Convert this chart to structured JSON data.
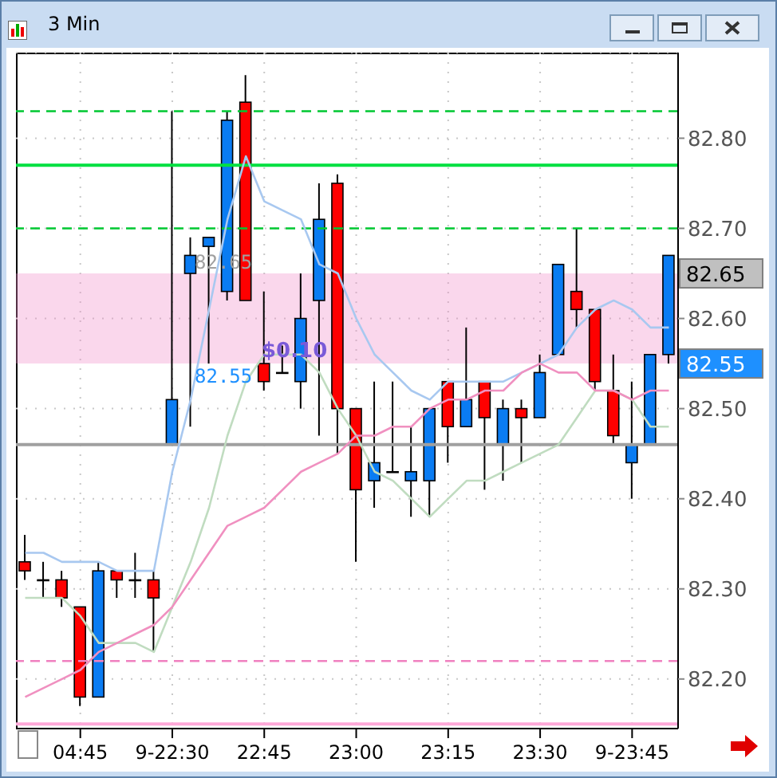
{
  "chart_data": {
    "type": "candlestick",
    "title": "3 Min",
    "categories": [
      null,
      null,
      null,
      "04:45",
      null,
      null,
      null,
      null,
      "9-22:30",
      null,
      null,
      null,
      null,
      "22:45",
      null,
      null,
      null,
      null,
      "23:00",
      null,
      null,
      null,
      null,
      "23:15",
      null,
      null,
      null,
      null,
      "23:30",
      null,
      null,
      null,
      null,
      "9-23:45",
      null,
      null
    ],
    "ohlc": [
      [
        82.33,
        82.36,
        82.31,
        82.32
      ],
      [
        82.31,
        82.33,
        82.29,
        82.31
      ],
      [
        82.31,
        82.32,
        82.28,
        82.29
      ],
      [
        82.28,
        82.28,
        82.17,
        82.18
      ],
      [
        82.18,
        82.33,
        82.18,
        82.32
      ],
      [
        82.32,
        82.32,
        82.29,
        82.31
      ],
      [
        82.31,
        82.34,
        82.29,
        82.31
      ],
      [
        82.31,
        82.32,
        82.23,
        82.29
      ],
      [
        82.46,
        82.83,
        82.46,
        82.51
      ],
      [
        82.65,
        82.69,
        82.48,
        82.67
      ],
      [
        82.68,
        82.69,
        82.55,
        82.69
      ],
      [
        82.63,
        82.83,
        82.62,
        82.82
      ],
      [
        82.84,
        82.87,
        82.62,
        82.62
      ],
      [
        82.55,
        82.63,
        82.52,
        82.53
      ],
      [
        82.54,
        82.57,
        82.54,
        82.54
      ],
      [
        82.53,
        82.65,
        82.5,
        82.6
      ],
      [
        82.62,
        82.75,
        82.47,
        82.71
      ],
      [
        82.75,
        82.76,
        82.45,
        82.5
      ],
      [
        82.5,
        82.5,
        82.33,
        82.41
      ],
      [
        82.42,
        82.53,
        82.39,
        82.44
      ],
      [
        82.43,
        82.53,
        82.43,
        82.43
      ],
      [
        82.42,
        82.48,
        82.38,
        82.43
      ],
      [
        82.42,
        82.5,
        82.38,
        82.5
      ],
      [
        82.53,
        82.53,
        82.44,
        82.48
      ],
      [
        82.48,
        82.59,
        82.48,
        82.51
      ],
      [
        82.53,
        82.53,
        82.41,
        82.49
      ],
      [
        82.46,
        82.51,
        82.42,
        82.5
      ],
      [
        82.5,
        82.51,
        82.44,
        82.49
      ],
      [
        82.49,
        82.56,
        82.49,
        82.54
      ],
      [
        82.56,
        82.66,
        82.56,
        82.66
      ],
      [
        82.63,
        82.7,
        82.59,
        82.61
      ],
      [
        82.61,
        82.61,
        82.52,
        82.53
      ],
      [
        82.52,
        82.56,
        82.46,
        82.47
      ],
      [
        82.44,
        82.53,
        82.4,
        82.46
      ],
      [
        82.46,
        82.56,
        82.46,
        82.56
      ],
      [
        82.56,
        82.67,
        82.55,
        82.67
      ]
    ],
    "colors": [
      "#ff0000",
      "#000000",
      "#ff0000",
      "#ff0000",
      "#0a7cf2",
      "#ff0000",
      "#000000",
      "#ff0000",
      "#0a7cf2",
      "#0a7cf2",
      "#0a7cf2",
      "#0a7cf2",
      "#ff0000",
      "#ff0000",
      "#000000",
      "#0a7cf2",
      "#0a7cf2",
      "#ff0000",
      "#ff0000",
      "#0a7cf2",
      "#000000",
      "#0a7cf2",
      "#0a7cf2",
      "#ff0000",
      "#0a7cf2",
      "#ff0000",
      "#0a7cf2",
      "#ff0000",
      "#0a7cf2",
      "#0a7cf2",
      "#ff0000",
      "#ff0000",
      "#ff0000",
      "#0a7cf2",
      "#0a7cf2",
      "#0a7cf2"
    ],
    "series": [
      {
        "type": "line",
        "color": "#a8c8f0",
        "values": [
          82.34,
          82.34,
          82.33,
          82.33,
          82.33,
          82.32,
          82.32,
          82.32,
          82.43,
          82.51,
          82.61,
          82.71,
          82.78,
          82.73,
          82.72,
          82.71,
          82.66,
          82.65,
          82.6,
          82.56,
          82.54,
          82.52,
          82.51,
          82.53,
          82.53,
          82.53,
          82.53,
          82.54,
          82.55,
          82.56,
          82.59,
          82.61,
          82.62,
          82.61,
          82.59,
          82.59
        ]
      },
      {
        "type": "line",
        "color": "#c0dcc0",
        "values": [
          82.29,
          82.29,
          82.29,
          82.27,
          82.24,
          82.24,
          82.24,
          82.23,
          82.28,
          82.33,
          82.39,
          82.47,
          82.53,
          82.56,
          82.56,
          82.56,
          82.54,
          82.5,
          82.47,
          82.43,
          82.42,
          82.4,
          82.38,
          82.4,
          82.42,
          82.42,
          82.43,
          82.44,
          82.45,
          82.46,
          82.49,
          82.52,
          82.52,
          82.51,
          82.48,
          82.48
        ]
      },
      {
        "type": "line",
        "color": "#f090c0",
        "values": [
          82.18,
          82.19,
          82.2,
          82.21,
          82.23,
          82.24,
          82.25,
          82.26,
          82.28,
          82.31,
          82.34,
          82.37,
          82.38,
          82.39,
          82.41,
          82.43,
          82.44,
          82.45,
          82.47,
          82.47,
          82.48,
          82.48,
          82.5,
          82.51,
          82.51,
          82.52,
          82.52,
          82.54,
          82.55,
          82.54,
          82.54,
          82.52,
          82.52,
          82.51,
          82.52,
          82.52
        ]
      }
    ],
    "marker": "none",
    "ylim": [
      82.145,
      82.895
    ],
    "yticks": [
      {
        "value": 82.2,
        "label": "82.20"
      },
      {
        "value": 82.3,
        "label": "82.30"
      },
      {
        "value": 82.4,
        "label": "82.40"
      },
      {
        "value": 82.5,
        "label": "82.50"
      },
      {
        "value": 82.6,
        "label": "82.60"
      },
      {
        "value": 82.7,
        "label": "82.70"
      },
      {
        "value": 82.8,
        "label": "82.80"
      }
    ],
    "grid": true,
    "ref_lines": [
      {
        "axis": "y",
        "value": 82.83,
        "color": "#00c832",
        "line_style": "dashed"
      },
      {
        "axis": "y",
        "value": 82.77,
        "color": "#00e040",
        "line_style": "solid"
      },
      {
        "axis": "y",
        "value": 82.7,
        "color": "#00c832",
        "line_style": "dashed"
      },
      {
        "axis": "y",
        "value": 82.46,
        "color": "#a0a0a0",
        "line_style": "solid"
      },
      {
        "axis": "y",
        "value": 82.22,
        "color": "#f080c0",
        "line_style": "dashed"
      },
      {
        "axis": "y",
        "value": 82.15,
        "color": "#ffa8d8",
        "line_style": "solid"
      }
    ],
    "bands": [
      {
        "axis": "y",
        "from": 82.55,
        "to": 82.65,
        "label": "$0.10",
        "color": "#f08cc8"
      }
    ],
    "annotations": [
      "82.65",
      "82.55",
      "82.65",
      "82.55"
    ]
  }
}
